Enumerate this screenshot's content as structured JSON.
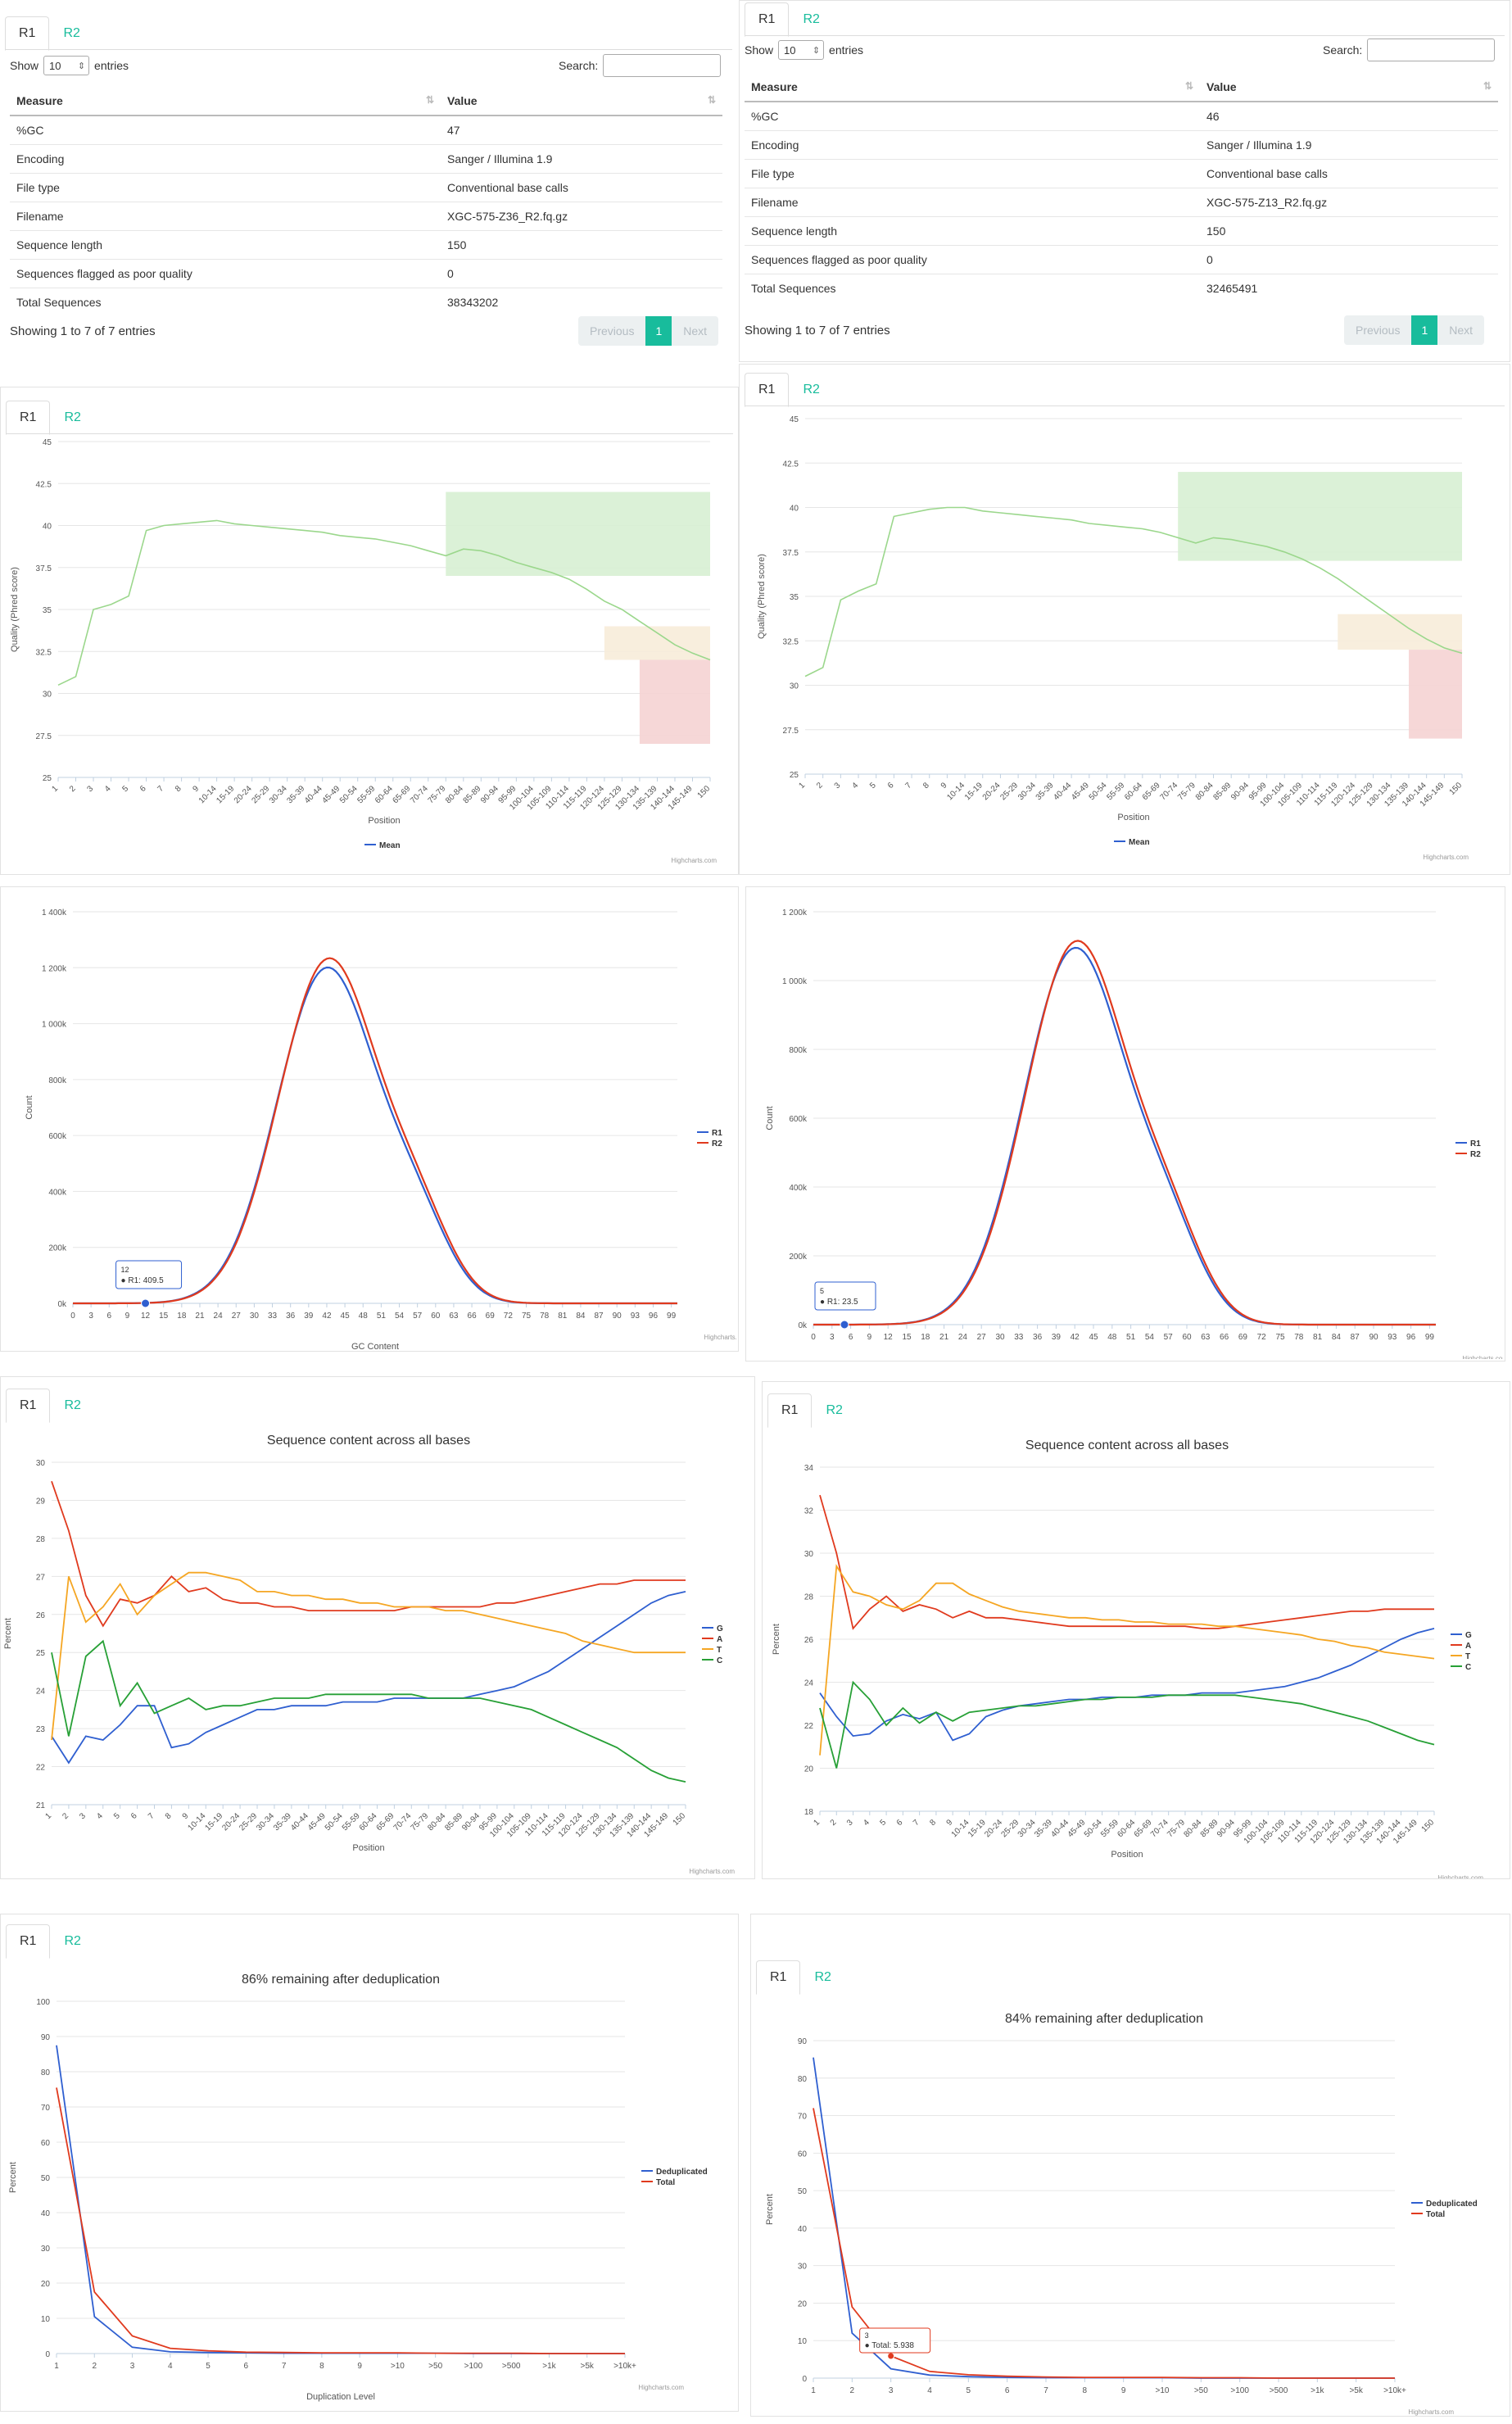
{
  "tabs": {
    "r1": "R1",
    "r2": "R2"
  },
  "table": {
    "show_label": "Show",
    "entries_label": "entries",
    "page_size": "10",
    "search_label": "Search:",
    "headers": {
      "measure": "Measure",
      "value": "Value"
    },
    "left": {
      "rows": [
        [
          "%GC",
          "47"
        ],
        [
          "Encoding",
          "Sanger / Illumina 1.9"
        ],
        [
          "File type",
          "Conventional base calls"
        ],
        [
          "Filename",
          "XGC-575-Z36_R2.fq.gz"
        ],
        [
          "Sequence length",
          "150"
        ],
        [
          "Sequences flagged as poor quality",
          "0"
        ],
        [
          "Total Sequences",
          "38343202"
        ]
      ],
      "info": "Showing 1 to 7 of 7 entries"
    },
    "right": {
      "rows": [
        [
          "%GC",
          "46"
        ],
        [
          "Encoding",
          "Sanger / Illumina 1.9"
        ],
        [
          "File type",
          "Conventional base calls"
        ],
        [
          "Filename",
          "XGC-575-Z13_R2.fq.gz"
        ],
        [
          "Sequence length",
          "150"
        ],
        [
          "Sequences flagged as poor quality",
          "0"
        ],
        [
          "Total Sequences",
          "32465491"
        ]
      ],
      "info": "Showing 1 to 7 of 7 entries"
    },
    "pager": {
      "previous": "Previous",
      "page": "1",
      "next": "Next"
    }
  },
  "credit": "Highcharts.com",
  "colors": {
    "accent": "#18bc9c",
    "blue": "#2f5fd0",
    "red": "#e03a1e",
    "orange": "#f5a623",
    "green": "#27a036",
    "qualityLine": "#9bd78c",
    "zoneGreen": "#d7f0d3",
    "zoneOrange": "#f7ecd9",
    "zoneRed": "#f5d3d3"
  },
  "chart_data": [
    {
      "id": "quality-left",
      "type": "line",
      "xlabel": "Position",
      "ylabel": "Quality (Phred score)",
      "ylim": [
        25,
        45
      ],
      "yticks": [
        "25",
        "27.5",
        "30",
        "32.5",
        "35",
        "37.5",
        "40",
        "42.5",
        "45"
      ],
      "categories": [
        "1",
        "2",
        "3",
        "4",
        "5",
        "6",
        "7",
        "8",
        "9",
        "10-14",
        "15-19",
        "20-24",
        "25-29",
        "30-34",
        "35-39",
        "40-44",
        "45-49",
        "50-54",
        "55-59",
        "60-64",
        "65-69",
        "70-74",
        "75-79",
        "80-84",
        "85-89",
        "90-94",
        "95-99",
        "100-104",
        "105-109",
        "110-114",
        "115-119",
        "120-124",
        "125-129",
        "130-134",
        "135-139",
        "140-144",
        "145-149",
        "150"
      ],
      "series": [
        {
          "name": "Mean",
          "values": [
            30.5,
            31,
            35,
            35.3,
            35.8,
            39.7,
            40,
            40.1,
            40.2,
            40.3,
            40.1,
            40,
            39.9,
            39.8,
            39.7,
            39.6,
            39.4,
            39.3,
            39.2,
            39,
            38.8,
            38.5,
            38.2,
            38.6,
            38.5,
            38.2,
            37.8,
            37.5,
            37.2,
            36.8,
            36.2,
            35.5,
            35,
            34.3,
            33.6,
            32.9,
            32.4,
            32
          ]
        }
      ],
      "legend": "bottom-center"
    },
    {
      "id": "quality-right",
      "type": "line",
      "xlabel": "Position",
      "ylabel": "Quality (Phred score)",
      "ylim": [
        25,
        45
      ],
      "yticks": [
        "25",
        "27.5",
        "30",
        "32.5",
        "35",
        "37.5",
        "40",
        "42.5",
        "45"
      ],
      "categories": [
        "1",
        "2",
        "3",
        "4",
        "5",
        "6",
        "7",
        "8",
        "9",
        "10-14",
        "15-19",
        "20-24",
        "25-29",
        "30-34",
        "35-39",
        "40-44",
        "45-49",
        "50-54",
        "55-59",
        "60-64",
        "65-69",
        "70-74",
        "75-79",
        "80-84",
        "85-89",
        "90-94",
        "95-99",
        "100-104",
        "105-109",
        "110-114",
        "115-119",
        "120-124",
        "125-129",
        "130-134",
        "135-139",
        "140-144",
        "145-149",
        "150"
      ],
      "series": [
        {
          "name": "Mean",
          "values": [
            30.5,
            31,
            34.8,
            35.3,
            35.7,
            39.5,
            39.7,
            39.9,
            40,
            40,
            39.8,
            39.7,
            39.6,
            39.5,
            39.4,
            39.3,
            39.1,
            39,
            38.9,
            38.8,
            38.6,
            38.3,
            38,
            38.3,
            38.2,
            38,
            37.8,
            37.5,
            37.1,
            36.6,
            36,
            35.3,
            34.6,
            33.9,
            33.2,
            32.6,
            32.1,
            31.8
          ]
        }
      ],
      "legend": "bottom-center"
    },
    {
      "id": "gc-left",
      "type": "line",
      "xlabel": "GC Content",
      "ylabel": "Count",
      "ylim": [
        0,
        1400000
      ],
      "yticks": [
        "0k",
        "200k",
        "400k",
        "600k",
        "800k",
        "1 000k",
        "1 200k",
        "1 400k"
      ],
      "xticks": [
        "0",
        "3",
        "6",
        "9",
        "12",
        "15",
        "18",
        "21",
        "24",
        "27",
        "30",
        "33",
        "36",
        "39",
        "42",
        "45",
        "48",
        "51",
        "54",
        "57",
        "60",
        "63",
        "66",
        "69",
        "72",
        "75",
        "78",
        "81",
        "84",
        "87",
        "90",
        "93",
        "96",
        "99"
      ],
      "series": [
        {
          "name": "R1"
        },
        {
          "name": "R2"
        }
      ],
      "legend": "right",
      "tooltip": {
        "x": "12",
        "text": "R1: 409.5"
      }
    },
    {
      "id": "gc-right",
      "type": "line",
      "xlabel": "GC Content",
      "ylabel": "Count",
      "ylim": [
        0,
        1200000
      ],
      "yticks": [
        "0k",
        "200k",
        "400k",
        "600k",
        "800k",
        "1 000k",
        "1 200k"
      ],
      "xticks": [
        "0",
        "3",
        "6",
        "9",
        "12",
        "15",
        "18",
        "21",
        "24",
        "27",
        "30",
        "33",
        "36",
        "39",
        "42",
        "45",
        "48",
        "51",
        "54",
        "57",
        "60",
        "63",
        "66",
        "69",
        "72",
        "75",
        "78",
        "81",
        "84",
        "87",
        "90",
        "93",
        "96",
        "99"
      ],
      "series": [
        {
          "name": "R1"
        },
        {
          "name": "R2"
        }
      ],
      "legend": "right",
      "tooltip": {
        "x": "5",
        "text": "R1: 23.5"
      }
    },
    {
      "id": "content-left",
      "type": "line",
      "title": "Sequence content across all bases",
      "xlabel": "Position",
      "ylabel": "Percent",
      "ylim": [
        21,
        30
      ],
      "yticks": [
        "21",
        "22",
        "23",
        "24",
        "25",
        "26",
        "27",
        "28",
        "29",
        "30"
      ],
      "categories": [
        "1",
        "2",
        "3",
        "4",
        "5",
        "6",
        "7",
        "8",
        "9",
        "10-14",
        "15-19",
        "20-24",
        "25-29",
        "30-34",
        "35-39",
        "40-44",
        "45-49",
        "50-54",
        "55-59",
        "60-64",
        "65-69",
        "70-74",
        "75-79",
        "80-84",
        "85-89",
        "90-94",
        "95-99",
        "100-104",
        "105-109",
        "110-114",
        "115-119",
        "120-124",
        "125-129",
        "130-134",
        "135-139",
        "140-144",
        "145-149",
        "150"
      ],
      "series": [
        {
          "name": "G",
          "values": [
            22.8,
            22.1,
            22.8,
            22.7,
            23.1,
            23.6,
            23.6,
            22.5,
            22.6,
            22.9,
            23.1,
            23.3,
            23.5,
            23.5,
            23.6,
            23.6,
            23.6,
            23.7,
            23.7,
            23.7,
            23.8,
            23.8,
            23.8,
            23.8,
            23.8,
            23.9,
            24,
            24.1,
            24.3,
            24.5,
            24.8,
            25.1,
            25.4,
            25.7,
            26,
            26.3,
            26.5,
            26.6
          ]
        },
        {
          "name": "A",
          "values": [
            29.5,
            28.2,
            26.5,
            25.7,
            26.4,
            26.3,
            26.5,
            27,
            26.6,
            26.7,
            26.4,
            26.3,
            26.3,
            26.2,
            26.2,
            26.1,
            26.1,
            26.1,
            26.1,
            26.1,
            26.1,
            26.2,
            26.2,
            26.2,
            26.2,
            26.2,
            26.3,
            26.3,
            26.4,
            26.5,
            26.6,
            26.7,
            26.8,
            26.8,
            26.9,
            26.9,
            26.9,
            26.9
          ]
        },
        {
          "name": "T",
          "values": [
            22.7,
            27,
            25.8,
            26.2,
            26.8,
            26,
            26.5,
            26.8,
            27.1,
            27.1,
            27,
            26.9,
            26.6,
            26.6,
            26.5,
            26.5,
            26.4,
            26.4,
            26.3,
            26.3,
            26.2,
            26.2,
            26.2,
            26.1,
            26.1,
            26,
            25.9,
            25.8,
            25.7,
            25.6,
            25.5,
            25.3,
            25.2,
            25.1,
            25,
            25,
            25,
            25
          ]
        },
        {
          "name": "C",
          "values": [
            25,
            22.8,
            24.9,
            25.3,
            23.6,
            24.2,
            23.4,
            23.6,
            23.8,
            23.5,
            23.6,
            23.6,
            23.7,
            23.8,
            23.8,
            23.8,
            23.9,
            23.9,
            23.9,
            23.9,
            23.9,
            23.9,
            23.8,
            23.8,
            23.8,
            23.8,
            23.7,
            23.6,
            23.5,
            23.3,
            23.1,
            22.9,
            22.7,
            22.5,
            22.2,
            21.9,
            21.7,
            21.6
          ]
        }
      ],
      "legend": "right"
    },
    {
      "id": "content-right",
      "type": "line",
      "title": "Sequence content across all bases",
      "xlabel": "Position",
      "ylabel": "Percent",
      "ylim": [
        18,
        34
      ],
      "yticks": [
        "18",
        "20",
        "22",
        "24",
        "26",
        "28",
        "30",
        "32",
        "34"
      ],
      "categories": [
        "1",
        "2",
        "3",
        "4",
        "5",
        "6",
        "7",
        "8",
        "9",
        "10-14",
        "15-19",
        "20-24",
        "25-29",
        "30-34",
        "35-39",
        "40-44",
        "45-49",
        "50-54",
        "55-59",
        "60-64",
        "65-69",
        "70-74",
        "75-79",
        "80-84",
        "85-89",
        "90-94",
        "95-99",
        "100-104",
        "105-109",
        "110-114",
        "115-119",
        "120-124",
        "125-129",
        "130-134",
        "135-139",
        "140-144",
        "145-149",
        "150"
      ],
      "series": [
        {
          "name": "G",
          "values": [
            23.5,
            22.4,
            21.5,
            21.6,
            22.2,
            22.5,
            22.3,
            22.6,
            21.3,
            21.6,
            22.4,
            22.7,
            22.9,
            23,
            23.1,
            23.2,
            23.2,
            23.3,
            23.3,
            23.3,
            23.4,
            23.4,
            23.4,
            23.5,
            23.5,
            23.5,
            23.6,
            23.7,
            23.8,
            24,
            24.2,
            24.5,
            24.8,
            25.2,
            25.6,
            26,
            26.3,
            26.5
          ]
        },
        {
          "name": "A",
          "values": [
            32.7,
            30,
            26.5,
            27.4,
            28,
            27.3,
            27.6,
            27.4,
            27,
            27.3,
            27,
            27,
            26.9,
            26.8,
            26.7,
            26.6,
            26.6,
            26.6,
            26.6,
            26.6,
            26.6,
            26.6,
            26.6,
            26.5,
            26.5,
            26.6,
            26.7,
            26.8,
            26.9,
            27,
            27.1,
            27.2,
            27.3,
            27.3,
            27.4,
            27.4,
            27.4,
            27.4
          ]
        },
        {
          "name": "T",
          "values": [
            20.6,
            29.4,
            28.2,
            28,
            27.6,
            27.4,
            27.8,
            28.6,
            28.6,
            28.1,
            27.8,
            27.5,
            27.3,
            27.2,
            27.1,
            27,
            27,
            26.9,
            26.9,
            26.8,
            26.8,
            26.7,
            26.7,
            26.7,
            26.6,
            26.6,
            26.5,
            26.4,
            26.3,
            26.2,
            26,
            25.9,
            25.7,
            25.6,
            25.4,
            25.3,
            25.2,
            25.1
          ]
        },
        {
          "name": "C",
          "values": [
            22.8,
            20,
            24,
            23.2,
            22,
            22.8,
            22.1,
            22.6,
            22.2,
            22.6,
            22.7,
            22.8,
            22.9,
            22.9,
            23,
            23.1,
            23.2,
            23.2,
            23.3,
            23.3,
            23.3,
            23.4,
            23.4,
            23.4,
            23.4,
            23.4,
            23.3,
            23.2,
            23.1,
            23,
            22.8,
            22.6,
            22.4,
            22.2,
            21.9,
            21.6,
            21.3,
            21.1
          ]
        }
      ],
      "legend": "right"
    },
    {
      "id": "dup-left",
      "type": "line",
      "title": "86% remaining after deduplication",
      "xlabel": "Duplication Level",
      "ylabel": "Percent",
      "ylim": [
        0,
        100
      ],
      "yticks": [
        "0",
        "10",
        "20",
        "30",
        "40",
        "50",
        "60",
        "70",
        "80",
        "90",
        "100"
      ],
      "categories": [
        "1",
        "2",
        "3",
        "4",
        "5",
        "6",
        "7",
        "8",
        "9",
        ">10",
        ">50",
        ">100",
        ">500",
        ">1k",
        ">5k",
        ">10k+"
      ],
      "series": [
        {
          "name": "Deduplicated",
          "values": [
            87.5,
            10.5,
            1.8,
            0.5,
            0.3,
            0.2,
            0.1,
            0.1,
            0.1,
            0.1,
            0.1,
            0,
            0,
            0,
            0,
            0
          ]
        },
        {
          "name": "Total",
          "values": [
            75.5,
            17.5,
            5,
            1.5,
            0.8,
            0.4,
            0.3,
            0.2,
            0.2,
            0.2,
            0.1,
            0.1,
            0.1,
            0,
            0,
            0
          ]
        }
      ],
      "legend": "right"
    },
    {
      "id": "dup-right",
      "type": "line",
      "title": "84% remaining after deduplication",
      "xlabel": "Duplication Level",
      "ylabel": "Percent",
      "ylim": [
        0,
        90
      ],
      "yticks": [
        "0",
        "10",
        "20",
        "30",
        "40",
        "50",
        "60",
        "70",
        "80",
        "90"
      ],
      "categories": [
        "1",
        "2",
        "3",
        "4",
        "5",
        "6",
        "7",
        "8",
        "9",
        ">10",
        ">50",
        ">100",
        ">500",
        ">1k",
        ">5k",
        ">10k+"
      ],
      "series": [
        {
          "name": "Deduplicated",
          "values": [
            85.5,
            12,
            2.5,
            0.8,
            0.4,
            0.2,
            0.1,
            0.1,
            0.1,
            0.1,
            0,
            0,
            0,
            0,
            0,
            0
          ]
        },
        {
          "name": "Total",
          "values": [
            72,
            19,
            5.9,
            1.8,
            0.9,
            0.5,
            0.3,
            0.2,
            0.2,
            0.2,
            0.1,
            0.1,
            0,
            0,
            0,
            0
          ]
        }
      ],
      "legend": "right",
      "tooltip": {
        "x": "3",
        "text": "Total: 5.938"
      }
    }
  ]
}
